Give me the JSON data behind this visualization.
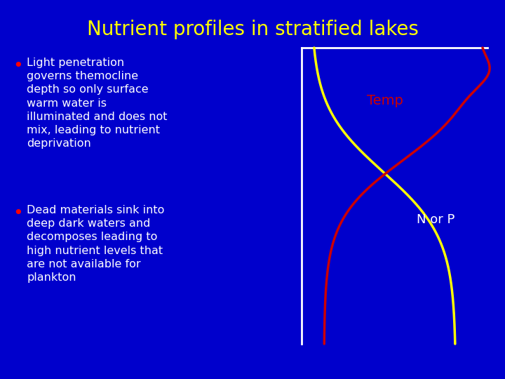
{
  "title": "Nutrient profiles in stratified lakes",
  "title_color": "#FFFF00",
  "title_fontsize": 20,
  "bg_color": "#0000CC",
  "bullet1": "Light penetration\ngoverns themocline\ndepth so only surface\nwarm water is\nilluminated and does not\nmix, leading to nutrient\ndeprivation",
  "bullet2": "Dead materials sink into\ndeep dark waters and\ndecomposes leading to\nhigh nutrient levels that\nare not available for\nplankton",
  "text_color": "#FFFFFF",
  "bullet_color": "#FF0000",
  "temp_label": "Temp",
  "temp_label_color": "#CC0000",
  "norp_label": "N or P",
  "norp_label_color": "#FFFFFF",
  "temp_line_color": "#CC0000",
  "nutrient_line_color": "#FFFF00",
  "axis_line_color": "#FFFFFF"
}
